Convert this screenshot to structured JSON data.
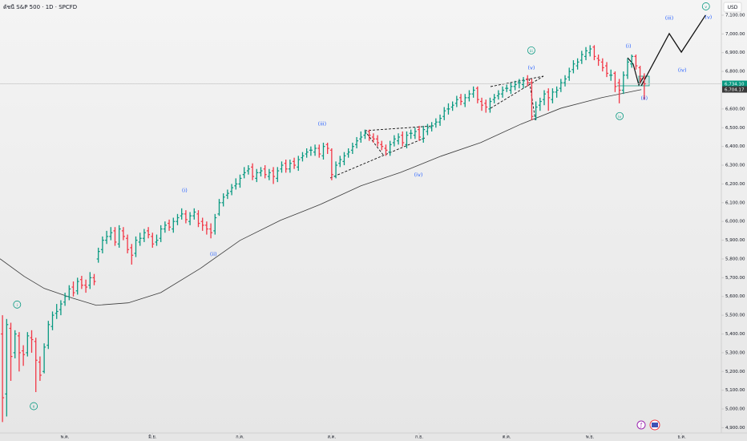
{
  "chart_data": {
    "type": "ohlc",
    "title": "ดัชนี S&P 500 · 1D · SPCFD",
    "currency": "USD",
    "ylim": [
      4872,
      7181
    ],
    "yticks": [
      {
        "value": 4900,
        "label": "4,900.00"
      },
      {
        "value": 5000,
        "label": "5,000.00"
      },
      {
        "value": 5100,
        "label": "5,100.00"
      },
      {
        "value": 5200,
        "label": "5,200.00"
      },
      {
        "value": 5300,
        "label": "5,300.00"
      },
      {
        "value": 5400,
        "label": "5,400.00"
      },
      {
        "value": 5500,
        "label": "5,500.00"
      },
      {
        "value": 5600,
        "label": "5,600.00"
      },
      {
        "value": 5700,
        "label": "5,700.00"
      },
      {
        "value": 5800,
        "label": "5,800.00"
      },
      {
        "value": 5900,
        "label": "5,900.00"
      },
      {
        "value": 6000,
        "label": "6,000.00"
      },
      {
        "value": 6100,
        "label": "6,100.00"
      },
      {
        "value": 6200,
        "label": "6,200.00"
      },
      {
        "value": 6300,
        "label": "6,300.00"
      },
      {
        "value": 6400,
        "label": "6,400.00"
      },
      {
        "value": 6500,
        "label": "6,500.00"
      },
      {
        "value": 6600,
        "label": "6,600.00"
      },
      {
        "value": 6800,
        "label": "6,800.00"
      },
      {
        "value": 6900,
        "label": "6,900.00"
      },
      {
        "value": 7000,
        "label": "7,000.00"
      },
      {
        "value": 7100,
        "label": "7,100.00"
      }
    ],
    "xlim": [
      -0.6,
      172.5
    ],
    "xticks": [
      {
        "value": 15,
        "label": "พ.ค."
      },
      {
        "value": 36,
        "label": "มิ.ย."
      },
      {
        "value": 57,
        "label": "ก.ค."
      },
      {
        "value": 79,
        "label": "ส.ค."
      },
      {
        "value": 100,
        "label": "ก.ย."
      },
      {
        "value": 121,
        "label": "ต.ค."
      },
      {
        "value": 141,
        "label": "พ.ย."
      },
      {
        "value": 163,
        "label": "ธ.ค."
      }
    ],
    "up_color": "#089981",
    "down_color": "#f23645",
    "grid": false,
    "series": [
      {
        "open": [
          5400,
          5080,
          5430,
          5300,
          5390,
          5310,
          5300,
          5380,
          5360,
          5250,
          5200,
          5340,
          5440,
          5510,
          5530,
          5570,
          5600,
          5650,
          5630,
          5690,
          5660,
          5660,
          5700,
          5800,
          5850,
          5900,
          5920,
          5950,
          5880,
          5950,
          5910,
          5860,
          5830,
          5890,
          5910,
          5950,
          5920,
          5890,
          5910,
          5960,
          5990,
          5960,
          6000,
          6030,
          6040,
          6000,
          6030,
          6040,
          6000,
          5980,
          5960,
          5950,
          6040,
          6100,
          6140,
          6160,
          6190,
          6200,
          6250,
          6270,
          6290,
          6230,
          6260,
          6280,
          6240,
          6270,
          6230,
          6280,
          6310,
          6280,
          6320,
          6290,
          6340,
          6360,
          6380,
          6370,
          6390,
          6350,
          6410,
          6380,
          6240,
          6310,
          6320,
          6360,
          6380,
          6410,
          6440,
          6460,
          6480,
          6450,
          6440,
          6410,
          6390,
          6370,
          6420,
          6430,
          6460,
          6410,
          6470,
          6460,
          6490,
          6440,
          6480,
          6500,
          6520,
          6530,
          6560,
          6600,
          6610,
          6630,
          6660,
          6630,
          6660,
          6680,
          6710,
          6640,
          6630,
          6600,
          6650,
          6670,
          6680,
          6710,
          6700,
          6720,
          6740,
          6730,
          6760,
          6740,
          6560,
          6620,
          6650,
          6690,
          6650,
          6690,
          6710,
          6740,
          6770,
          6810,
          6830,
          6860,
          6880,
          6900,
          6930,
          6870,
          6850,
          6830,
          6780,
          6790,
          6740,
          6700,
          6780,
          6840,
          6880,
          6820,
          6770
        ],
        "high": [
          5500,
          5480,
          5460,
          5420,
          5410,
          5340,
          5410,
          5420,
          5380,
          5280,
          5350,
          5470,
          5520,
          5560,
          5580,
          5620,
          5660,
          5680,
          5700,
          5710,
          5690,
          5730,
          5720,
          5860,
          5920,
          5950,
          5970,
          5970,
          5980,
          5970,
          5930,
          5880,
          5920,
          5940,
          5960,
          5970,
          5940,
          5930,
          5980,
          6000,
          6010,
          6020,
          6040,
          6070,
          6060,
          6050,
          6070,
          6060,
          6020,
          6000,
          5990,
          6040,
          6120,
          6150,
          6170,
          6200,
          6230,
          6250,
          6290,
          6300,
          6310,
          6280,
          6290,
          6300,
          6280,
          6290,
          6290,
          6320,
          6330,
          6330,
          6340,
          6350,
          6370,
          6390,
          6400,
          6410,
          6410,
          6420,
          6420,
          6390,
          6320,
          6350,
          6370,
          6390,
          6420,
          6450,
          6480,
          6490,
          6490,
          6470,
          6460,
          6430,
          6410,
          6430,
          6460,
          6470,
          6480,
          6480,
          6490,
          6500,
          6510,
          6510,
          6520,
          6530,
          6550,
          6570,
          6610,
          6630,
          6640,
          6670,
          6680,
          6680,
          6700,
          6720,
          6720,
          6660,
          6650,
          6660,
          6680,
          6700,
          6720,
          6730,
          6740,
          6750,
          6760,
          6770,
          6780,
          6760,
          6640,
          6660,
          6700,
          6710,
          6710,
          6720,
          6760,
          6780,
          6820,
          6860,
          6870,
          6910,
          6930,
          6940,
          6940,
          6890,
          6870,
          6850,
          6810,
          6800,
          6760,
          6800,
          6870,
          6890,
          6890,
          6830,
          6790
        ],
        "low": [
          4930,
          4960,
          5150,
          5270,
          5200,
          5230,
          5280,
          5300,
          5090,
          5150,
          5190,
          5320,
          5420,
          5480,
          5500,
          5550,
          5580,
          5600,
          5610,
          5640,
          5620,
          5640,
          5660,
          5780,
          5830,
          5880,
          5900,
          5870,
          5860,
          5900,
          5830,
          5770,
          5810,
          5870,
          5890,
          5910,
          5860,
          5870,
          5890,
          5940,
          5950,
          5940,
          5980,
          6010,
          5990,
          5980,
          6010,
          5970,
          5950,
          5930,
          5910,
          5930,
          6030,
          6080,
          6120,
          6140,
          6170,
          6180,
          6230,
          6250,
          6220,
          6210,
          6240,
          6230,
          6220,
          6200,
          6210,
          6260,
          6260,
          6260,
          6280,
          6270,
          6320,
          6340,
          6350,
          6350,
          6340,
          6330,
          6360,
          6220,
          6230,
          6290,
          6300,
          6340,
          6360,
          6390,
          6420,
          6440,
          6430,
          6420,
          6400,
          6380,
          6350,
          6350,
          6400,
          6410,
          6400,
          6390,
          6440,
          6440,
          6430,
          6420,
          6460,
          6480,
          6500,
          6510,
          6540,
          6570,
          6590,
          6610,
          6620,
          6610,
          6640,
          6660,
          6630,
          6590,
          6580,
          6580,
          6630,
          6650,
          6660,
          6690,
          6680,
          6700,
          6710,
          6710,
          6720,
          6540,
          6540,
          6590,
          6620,
          6590,
          6630,
          6660,
          6690,
          6720,
          6750,
          6790,
          6810,
          6840,
          6860,
          6880,
          6860,
          6830,
          6800,
          6770,
          6750,
          6690,
          6630,
          6680,
          6760,
          6820,
          6810,
          6740,
          6650
        ],
        "close": [
          5060,
          5450,
          5280,
          5400,
          5300,
          5290,
          5390,
          5370,
          5260,
          5180,
          5330,
          5450,
          5500,
          5520,
          5560,
          5600,
          5640,
          5620,
          5680,
          5660,
          5650,
          5700,
          5680,
          5840,
          5900,
          5920,
          5940,
          5890,
          5960,
          5920,
          5850,
          5820,
          5900,
          5910,
          5940,
          5930,
          5880,
          5900,
          5960,
          5980,
          5970,
          6000,
          6020,
          6040,
          6010,
          6030,
          6050,
          5990,
          5980,
          5960,
          5940,
          6020,
          6100,
          6130,
          6150,
          6180,
          6200,
          6230,
          6260,
          6280,
          6240,
          6260,
          6270,
          6250,
          6260,
          6240,
          6270,
          6300,
          6280,
          6310,
          6300,
          6330,
          6350,
          6370,
          6380,
          6390,
          6360,
          6400,
          6390,
          6250,
          6300,
          6330,
          6350,
          6370,
          6400,
          6430,
          6450,
          6470,
          6460,
          6440,
          6420,
          6400,
          6380,
          6410,
          6440,
          6450,
          6420,
          6460,
          6470,
          6480,
          6450,
          6490,
          6500,
          6510,
          6530,
          6550,
          6590,
          6600,
          6620,
          6650,
          6640,
          6660,
          6680,
          6700,
          6650,
          6620,
          6610,
          6640,
          6660,
          6680,
          6700,
          6710,
          6720,
          6730,
          6740,
          6750,
          6740,
          6560,
          6610,
          6640,
          6680,
          6660,
          6690,
          6700,
          6740,
          6760,
          6800,
          6840,
          6850,
          6890,
          6910,
          6920,
          6880,
          6860,
          6820,
          6790,
          6780,
          6720,
          6700,
          6780,
          6850,
          6880,
          6830,
          6760,
          6734
        ]
      }
    ],
    "ma": {
      "color": "#3a3a3a",
      "x": [
        -0.6,
        5.2,
        10,
        16.7,
        22.5,
        30.2,
        38,
        47.5,
        57,
        66.7,
        76.3,
        86,
        95.6,
        105.2,
        114.8,
        124.4,
        134,
        143.7,
        153.3
      ],
      "values": [
        5801,
        5707,
        5643,
        5592,
        5553,
        5566,
        5621,
        5750,
        5899,
        6006,
        6091,
        6190,
        6262,
        6348,
        6421,
        6519,
        6604,
        6660,
        6703
      ]
    },
    "projection": {
      "color": "#111111",
      "x": [
        153.3,
        160,
        162.9,
        168.7
      ],
      "values": [
        6724,
        7002,
        6903,
        7100
      ]
    },
    "last_price": {
      "value": 6734.1,
      "label": "6,734.10"
    },
    "ma_last": {
      "value": 6704.17,
      "label": "6,704.17"
    },
    "wave_labels": [
      {
        "label": "(i)",
        "x": 43.7,
        "y": 6168,
        "color": "#2962ff"
      },
      {
        "label": "(ii)",
        "x": 50.6,
        "y": 5827,
        "color": "#2962ff"
      },
      {
        "label": "(iii)",
        "x": 76.7,
        "y": 6523,
        "color": "#2962ff"
      },
      {
        "label": "(iv)",
        "x": 99.8,
        "y": 6250,
        "color": "#2962ff"
      },
      {
        "label": "(v)",
        "x": 126.9,
        "y": 6822,
        "color": "#2962ff"
      },
      {
        "label": "(i)",
        "x": 150.2,
        "y": 6938,
        "color": "#2962ff"
      },
      {
        "label": "(ii)",
        "x": 154,
        "y": 6660,
        "color": "#2962ff"
      },
      {
        "label": "(iii)",
        "x": 160,
        "y": 7087,
        "color": "#2962ff"
      },
      {
        "label": "(iv)",
        "x": 163.1,
        "y": 6809,
        "color": "#2962ff"
      },
      {
        "label": "(v)",
        "x": 169.4,
        "y": 7091,
        "color": "#2962ff"
      },
      {
        "label": "i",
        "x": 3.5,
        "y": 5557,
        "color": "#089981",
        "circle": true
      },
      {
        "label": "ii",
        "x": 7.5,
        "y": 5015,
        "color": "#089981",
        "circle": true
      },
      {
        "label": "iii",
        "x": 126.9,
        "y": 6912,
        "color": "#089981",
        "circle": true
      },
      {
        "label": "iv",
        "x": 148.1,
        "y": 6562,
        "color": "#089981",
        "circle": true
      },
      {
        "label": "v",
        "x": 168.8,
        "y": 7147,
        "color": "#089981",
        "circle": true
      }
    ]
  }
}
